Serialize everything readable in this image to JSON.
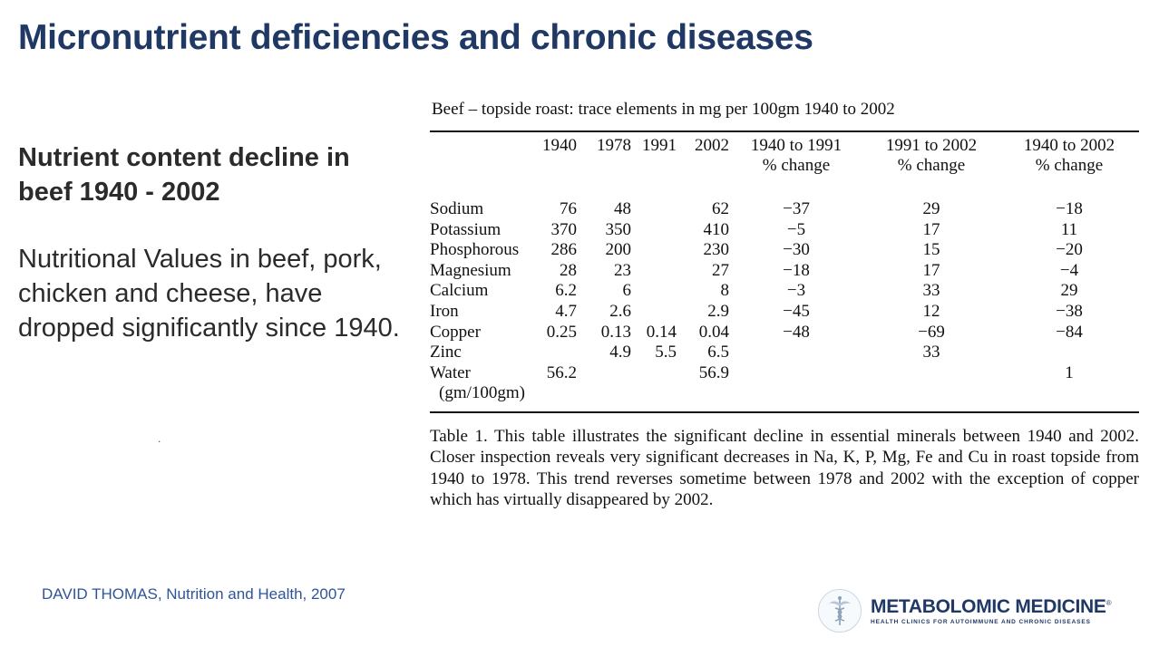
{
  "slide": {
    "title": "Micronutrient deficiencies and chronic diseases",
    "subheading": "Nutrient content decline in beef 1940 - 2002",
    "body": "Nutritional Values in beef, pork, chicken and cheese, have dropped significantly since 1940.",
    "dot": ".",
    "citation": "DAVID THOMAS, Nutrition and Health, 2007"
  },
  "table": {
    "title": "Beef – topside roast: trace elements in mg per 100gm 1940 to 2002",
    "headers": {
      "y1940": "1940",
      "y1978": "1978",
      "y1991": "1991",
      "y2002": "2002",
      "c1_line1": "1940 to 1991",
      "c1_line2": "% change",
      "c2_line1": "1991 to 2002",
      "c2_line2": "% change",
      "c3_line1": "1940 to 2002",
      "c3_line2": "% change"
    },
    "rows": [
      {
        "element": "Sodium",
        "v1940": "76",
        "v1978": "48",
        "v1991": "",
        "v2002": "62",
        "c1": "−37",
        "c2": "29",
        "c3": "−18"
      },
      {
        "element": "Potassium",
        "v1940": "370",
        "v1978": "350",
        "v1991": "",
        "v2002": "410",
        "c1": "−5",
        "c2": "17",
        "c3": "11"
      },
      {
        "element": "Phosphorous",
        "v1940": "286",
        "v1978": "200",
        "v1991": "",
        "v2002": "230",
        "c1": "−30",
        "c2": "15",
        "c3": "−20"
      },
      {
        "element": "Magnesium",
        "v1940": "28",
        "v1978": "23",
        "v1991": "",
        "v2002": "27",
        "c1": "−18",
        "c2": "17",
        "c3": "−4"
      },
      {
        "element": "Calcium",
        "v1940": "6.2",
        "v1978": "6",
        "v1991": "",
        "v2002": "8",
        "c1": "−3",
        "c2": "33",
        "c3": "29"
      },
      {
        "element": "Iron",
        "v1940": "4.7",
        "v1978": "2.6",
        "v1991": "",
        "v2002": "2.9",
        "c1": "−45",
        "c2": "12",
        "c3": "−38"
      },
      {
        "element": "Copper",
        "v1940": "0.25",
        "v1978": "0.13",
        "v1991": "0.14",
        "v2002": "0.04",
        "c1": "−48",
        "c2": "−69",
        "c3": "−84"
      },
      {
        "element": "Zinc",
        "v1940": "",
        "v1978": "4.9",
        "v1991": "5.5",
        "v2002": "6.5",
        "c1": "",
        "c2": "33",
        "c3": ""
      },
      {
        "element": "Water",
        "v1940": "56.2",
        "v1978": "",
        "v1991": "",
        "v2002": "56.9",
        "c1": "",
        "c2": "",
        "c3": "1"
      }
    ],
    "water_unit": "(gm/100gm)",
    "caption": "Table 1. This table illustrates the significant decline in essential minerals between 1940 and 2002. Closer inspection reveals very significant decreases in Na, K, P, Mg, Fe and Cu in roast topside from 1940 to 1978. This trend reverses sometime between 1978 and 2002 with the exception of copper which has virtually disappeared by 2002."
  },
  "logo": {
    "name": "METABOLOMIC MEDICINE",
    "registered": "®",
    "tagline": "HEALTH CLINICS FOR AUTOIMMUNE AND CHRONIC DISEASES",
    "icon": "caduceus-icon",
    "color": "#1f3864"
  },
  "colors": {
    "title": "#1f3864",
    "citation": "#2e5597",
    "text": "#2b2b2b"
  }
}
